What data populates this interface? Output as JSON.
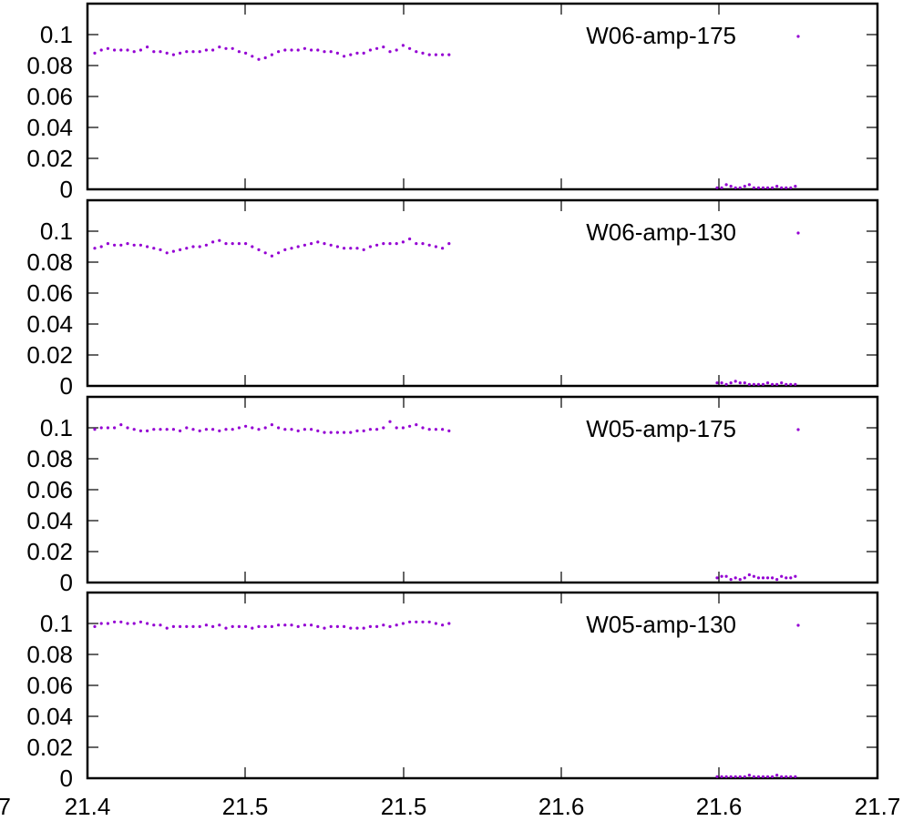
{
  "chart_data": {
    "type": "scatter",
    "layout": "stacked",
    "x_tick_labels": [
      "21.4",
      "21.5",
      "21.5",
      "21.6",
      "21.6",
      "21.7"
    ],
    "x_tick_labels_left_clipped": "7",
    "y_tick_labels": [
      "0",
      "0.02",
      "0.04",
      "0.06",
      "0.08",
      "0.1"
    ],
    "xlim": [
      21.4,
      21.7
    ],
    "ylim": [
      0,
      0.12
    ],
    "grid": false,
    "legend_position": "top-right",
    "marker_color": "#9400d3",
    "panels": [
      {
        "name": "W06-amp-175",
        "series": [
          {
            "x": 21.4,
            "values": [
              0.088,
              0.09,
              0.091,
              0.09,
              0.09,
              0.09,
              0.089,
              0.09,
              0.092,
              0.089,
              0.089,
              0.088,
              0.087,
              0.088,
              0.089,
              0.089,
              0.089,
              0.09,
              0.09,
              0.092,
              0.091,
              0.091,
              0.089,
              0.088,
              0.086,
              0.084,
              0.085,
              0.087,
              0.089,
              0.09,
              0.09,
              0.09,
              0.091,
              0.09,
              0.09,
              0.089,
              0.089,
              0.088,
              0.086,
              0.087,
              0.088,
              0.088,
              0.09,
              0.091,
              0.092,
              0.089,
              0.09,
              0.093,
              0.091,
              0.089,
              0.088,
              0.087,
              0.087,
              0.087,
              0.087
            ]
          },
          {
            "x": 21.6,
            "values": [
              0.001,
              0.001,
              0.003,
              0.002,
              0.001,
              0.001,
              0.002,
              0.003,
              0.001,
              0.001,
              0.001,
              0.001,
              0.001,
              0.002,
              0.001,
              0.001,
              0.001,
              0.002
            ]
          }
        ]
      },
      {
        "name": "W06-amp-130",
        "series": [
          {
            "x": 21.4,
            "values": [
              0.089,
              0.09,
              0.092,
              0.091,
              0.091,
              0.092,
              0.091,
              0.091,
              0.09,
              0.089,
              0.088,
              0.086,
              0.087,
              0.088,
              0.089,
              0.09,
              0.09,
              0.091,
              0.093,
              0.094,
              0.092,
              0.092,
              0.092,
              0.092,
              0.09,
              0.088,
              0.086,
              0.084,
              0.086,
              0.088,
              0.089,
              0.09,
              0.091,
              0.092,
              0.093,
              0.092,
              0.091,
              0.09,
              0.089,
              0.089,
              0.089,
              0.088,
              0.09,
              0.091,
              0.092,
              0.092,
              0.092,
              0.093,
              0.095,
              0.092,
              0.092,
              0.091,
              0.09,
              0.089,
              0.092
            ]
          },
          {
            "x": 21.6,
            "values": [
              0.002,
              0.002,
              0.001,
              0.002,
              0.003,
              0.002,
              0.002,
              0.001,
              0.001,
              0.001,
              0.001,
              0.002,
              0.001,
              0.001,
              0.002,
              0.001,
              0.001,
              0.001
            ]
          }
        ]
      },
      {
        "name": "W05-amp-175",
        "series": [
          {
            "x": 21.4,
            "values": [
              0.099,
              0.1,
              0.1,
              0.1,
              0.102,
              0.1,
              0.099,
              0.098,
              0.098,
              0.099,
              0.099,
              0.099,
              0.099,
              0.098,
              0.1,
              0.099,
              0.098,
              0.099,
              0.099,
              0.098,
              0.099,
              0.099,
              0.1,
              0.101,
              0.1,
              0.099,
              0.1,
              0.102,
              0.1,
              0.099,
              0.099,
              0.098,
              0.099,
              0.099,
              0.098,
              0.097,
              0.097,
              0.097,
              0.097,
              0.097,
              0.098,
              0.098,
              0.099,
              0.099,
              0.1,
              0.104,
              0.1,
              0.1,
              0.101,
              0.102,
              0.1,
              0.099,
              0.099,
              0.099,
              0.098
            ]
          },
          {
            "x": 21.6,
            "values": [
              0.003,
              0.004,
              0.004,
              0.002,
              0.003,
              0.002,
              0.003,
              0.005,
              0.004,
              0.003,
              0.003,
              0.003,
              0.003,
              0.002,
              0.004,
              0.003,
              0.003,
              0.004
            ]
          }
        ]
      },
      {
        "name": "W05-amp-130",
        "series": [
          {
            "x": 21.4,
            "values": [
              0.098,
              0.1,
              0.1,
              0.101,
              0.101,
              0.1,
              0.1,
              0.101,
              0.1,
              0.099,
              0.099,
              0.097,
              0.098,
              0.098,
              0.098,
              0.098,
              0.098,
              0.099,
              0.098,
              0.099,
              0.097,
              0.098,
              0.098,
              0.098,
              0.097,
              0.098,
              0.098,
              0.098,
              0.099,
              0.099,
              0.099,
              0.098,
              0.099,
              0.099,
              0.098,
              0.097,
              0.098,
              0.098,
              0.098,
              0.097,
              0.097,
              0.097,
              0.098,
              0.098,
              0.099,
              0.098,
              0.099,
              0.1,
              0.101,
              0.101,
              0.101,
              0.101,
              0.1,
              0.099,
              0.1
            ]
          },
          {
            "x": 21.6,
            "values": [
              0.001,
              0.001,
              0.001,
              0.001,
              0.001,
              0.001,
              0.001,
              0.002,
              0.001,
              0.001,
              0.001,
              0.001,
              0.001,
              0.002,
              0.001,
              0.001,
              0.001,
              0.001
            ]
          }
        ]
      }
    ]
  }
}
